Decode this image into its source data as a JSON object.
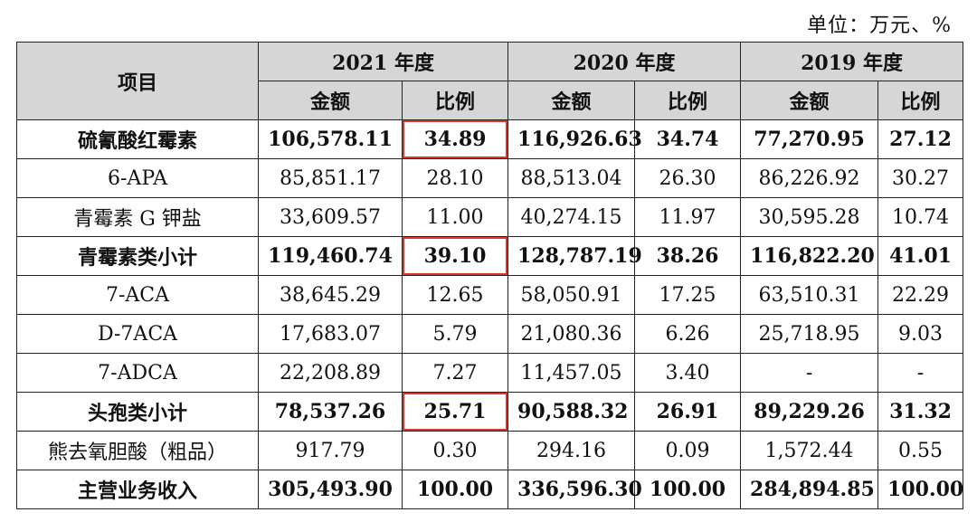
{
  "unit": "单位：万元、%",
  "header": {
    "item": "项目",
    "years": [
      "2021 年度",
      "2020 年度",
      "2019 年度"
    ],
    "amount": "金额",
    "ratio": "比例"
  },
  "rows": [
    {
      "name": "硫氰酸红霉素",
      "bold": true,
      "v": [
        "106,578.11",
        "34.89",
        "116,926.63",
        "34.74",
        "77,270.95",
        "27.12"
      ],
      "highlight": true
    },
    {
      "name": "6-APA",
      "bold": false,
      "v": [
        "85,851.17",
        "28.10",
        "88,513.04",
        "26.30",
        "86,226.92",
        "30.27"
      ]
    },
    {
      "name": "青霉素 G 钾盐",
      "bold": false,
      "v": [
        "33,609.57",
        "11.00",
        "40,274.15",
        "11.97",
        "30,595.28",
        "10.74"
      ]
    },
    {
      "name": "青霉素类小计",
      "bold": true,
      "v": [
        "119,460.74",
        "39.10",
        "128,787.19",
        "38.26",
        "116,822.20",
        "41.01"
      ],
      "highlight": true
    },
    {
      "name": "7-ACA",
      "bold": false,
      "v": [
        "38,645.29",
        "12.65",
        "58,050.91",
        "17.25",
        "63,510.31",
        "22.29"
      ]
    },
    {
      "name": "D-7ACA",
      "bold": false,
      "v": [
        "17,683.07",
        "5.79",
        "21,080.36",
        "6.26",
        "25,718.95",
        "9.03"
      ]
    },
    {
      "name": "7-ADCA",
      "bold": false,
      "v": [
        "22,208.89",
        "7.27",
        "11,457.05",
        "3.40",
        "-",
        "-"
      ]
    },
    {
      "name": "头孢类小计",
      "bold": true,
      "v": [
        "78,537.26",
        "25.71",
        "90,588.32",
        "26.91",
        "89,229.26",
        "31.32"
      ],
      "highlight": true
    },
    {
      "name": "熊去氧胆酸（粗品）",
      "bold": false,
      "v": [
        "917.79",
        "0.30",
        "294.16",
        "0.09",
        "1,572.44",
        "0.55"
      ]
    },
    {
      "name": "主营业务收入",
      "bold": true,
      "v": [
        "305,493.90",
        "100.00",
        "336,596.30",
        "100.00",
        "284,894.85",
        "100.00"
      ]
    }
  ]
}
